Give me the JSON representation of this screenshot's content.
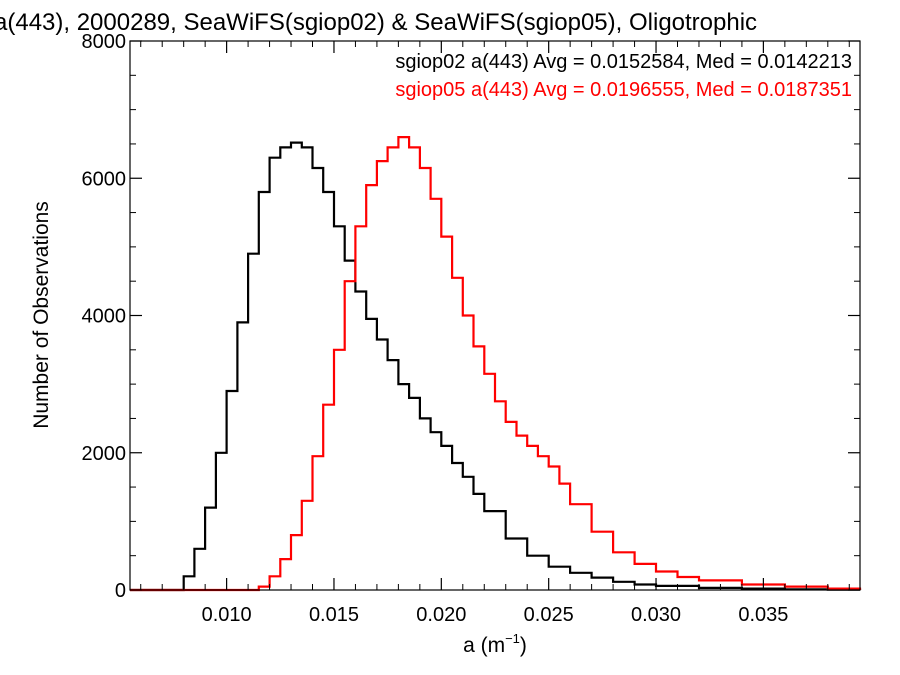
{
  "chart_data": {
    "type": "line",
    "title": "a(443), 2000289, SeaWiFS(sgiop02) & SeaWiFS(sgiop05), Oligotrophic",
    "xlabel": "a (m",
    "xlabel_sup": "−1",
    "xlabel_close": ")",
    "ylabel": "Number of Observations",
    "xlim": [
      0.0055,
      0.0395
    ],
    "ylim": [
      0,
      8000
    ],
    "x_ticks": [
      0.01,
      0.015,
      0.02,
      0.025,
      0.03,
      0.035
    ],
    "x_tick_labels": [
      "0.010",
      "0.015",
      "0.020",
      "0.025",
      "0.030",
      "0.035"
    ],
    "y_ticks": [
      0,
      2000,
      4000,
      6000,
      8000
    ],
    "y_tick_labels": [
      "0",
      "2000",
      "4000",
      "6000",
      "8000"
    ],
    "grid": false,
    "legend_position": "top-right",
    "legend": [
      {
        "text": "sgiop02 a(443) Avg = 0.0152584, Med = 0.0142213",
        "color": "#000000"
      },
      {
        "text": "sgiop05 a(443) Avg = 0.0196555, Med = 0.0187351",
        "color": "#ff0000"
      }
    ],
    "series": [
      {
        "color": "#000000",
        "x": [
          0.0055,
          0.0075,
          0.008,
          0.0085,
          0.009,
          0.0095,
          0.01,
          0.0105,
          0.011,
          0.0115,
          0.012,
          0.0125,
          0.013,
          0.0135,
          0.014,
          0.0145,
          0.015,
          0.0155,
          0.016,
          0.0165,
          0.017,
          0.0175,
          0.018,
          0.0185,
          0.019,
          0.0195,
          0.02,
          0.0205,
          0.021,
          0.0215,
          0.022,
          0.023,
          0.024,
          0.025,
          0.026,
          0.027,
          0.028,
          0.029,
          0.03,
          0.032,
          0.034,
          0.036,
          0.038,
          0.0395
        ],
        "y": [
          0,
          0,
          200,
          600,
          1200,
          2000,
          2900,
          3900,
          4900,
          5800,
          6300,
          6450,
          6520,
          6450,
          6150,
          5800,
          5300,
          4800,
          4350,
          3950,
          3650,
          3350,
          3000,
          2800,
          2500,
          2300,
          2100,
          1850,
          1650,
          1400,
          1150,
          750,
          500,
          340,
          250,
          180,
          120,
          80,
          60,
          30,
          20,
          10,
          5,
          0
        ]
      },
      {
        "color": "#ff0000",
        "x": [
          0.0055,
          0.011,
          0.0115,
          0.012,
          0.0125,
          0.013,
          0.0135,
          0.014,
          0.0145,
          0.015,
          0.0155,
          0.016,
          0.0165,
          0.017,
          0.0175,
          0.018,
          0.0185,
          0.019,
          0.0195,
          0.02,
          0.0205,
          0.021,
          0.0215,
          0.022,
          0.0225,
          0.023,
          0.0235,
          0.024,
          0.0245,
          0.025,
          0.0255,
          0.026,
          0.027,
          0.028,
          0.029,
          0.03,
          0.031,
          0.032,
          0.034,
          0.036,
          0.038,
          0.0395
        ],
        "y": [
          0,
          0,
          50,
          200,
          450,
          800,
          1300,
          1950,
          2700,
          3500,
          4500,
          5300,
          5900,
          6250,
          6450,
          6600,
          6450,
          6150,
          5700,
          5150,
          4550,
          4000,
          3550,
          3150,
          2750,
          2450,
          2250,
          2100,
          1950,
          1800,
          1550,
          1250,
          850,
          550,
          380,
          270,
          190,
          140,
          80,
          50,
          20,
          0
        ]
      }
    ]
  }
}
